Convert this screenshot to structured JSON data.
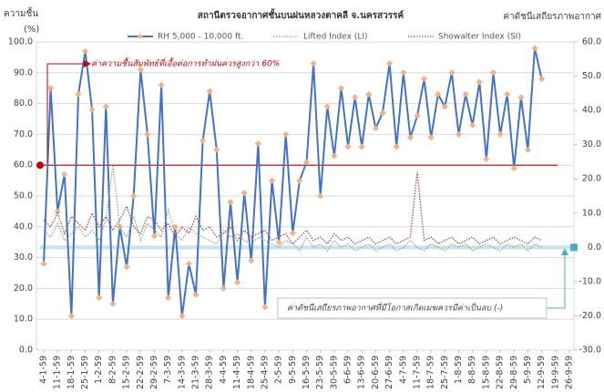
{
  "chart_data": {
    "type": "line",
    "title": "สถานีตรวจอากาศชั้นบนฝนหลวงตาคลี  จ.นครสวรรค์",
    "ylabel": [
      "ความชื้น",
      "(%)"
    ],
    "y2label": "ค่าดัชนีเสถียรภาพอากาศ",
    "annotations": [
      "ค่าความชื้นสัมพัทธ์ที่เอื้อต่อการทำฝนควรสูงกว่า 60%",
      "ค่าดัชนีเสถียรภาพอากาศที่มีโอกาสเกิดเมฆควรมีค่าเป็นลบ (-)"
    ],
    "categories": [
      "4-1-59",
      null,
      "11-1-59",
      null,
      "18-1-59",
      null,
      "25-1-59",
      null,
      "1-2-59",
      null,
      "8-2-59",
      null,
      "15-2-59",
      null,
      "22-2-59",
      null,
      "29-2-59",
      null,
      "7-3-59",
      null,
      "14-3-59",
      null,
      "21-3-59",
      null,
      "28-3-59",
      null,
      "4-4-59",
      null,
      "11-4-59",
      null,
      "18-4-59",
      null,
      "25-4-59",
      null,
      "2-5-59",
      null,
      "9-5-59",
      null,
      "16-5-59",
      null,
      "23-5-59",
      null,
      "30-5-59",
      null,
      "6-6-59",
      null,
      "13-6-59",
      null,
      "20-6-59",
      null,
      "27-6-59",
      null,
      "4-7-59",
      null,
      "11-7-59",
      null,
      "18-7-59",
      null,
      "25-7-59",
      null,
      "1-8-59",
      null,
      "8-8-59",
      null,
      "15-8-59",
      null,
      "22-8-59",
      null,
      "29-8-59",
      null,
      "5-9-59",
      null,
      "12-9-59",
      null,
      "19-9-59",
      null,
      "26-9-59"
    ],
    "series": [
      {
        "name": "RH 5,000 - 10,000 ft.",
        "color": "#4472c4",
        "marker_color": "#f4b183",
        "style": "solid",
        "axis": "y",
        "values": [
          28,
          85,
          45,
          57,
          11,
          83,
          97,
          78,
          17,
          79,
          15,
          40,
          27,
          50,
          91,
          70,
          37,
          86,
          17,
          40,
          11,
          28,
          18,
          68,
          84,
          65,
          20,
          48,
          22,
          51,
          29,
          67,
          14,
          55,
          35,
          70,
          38,
          55,
          61,
          93,
          50,
          79,
          63,
          85,
          66,
          82,
          66,
          83,
          72,
          77,
          93,
          66,
          90,
          69,
          76,
          88,
          69,
          83,
          79,
          90,
          70,
          83,
          73,
          87,
          62,
          90,
          70,
          83,
          59,
          82,
          65,
          98,
          88,
          null,
          null,
          null,
          null
        ]
      },
      {
        "name": "Lifted Index (LI)",
        "color": "#8faa8f",
        "style": "dotted",
        "axis": "y2",
        "values": [
          5,
          3,
          7,
          2,
          4,
          6,
          3,
          5,
          2,
          8,
          24,
          6,
          3,
          9,
          2,
          7,
          5,
          3,
          11,
          4,
          2,
          6,
          4,
          3,
          2,
          1,
          5,
          3,
          4,
          2,
          1,
          3,
          2,
          1,
          0,
          2,
          1,
          -1,
          3,
          0,
          1,
          -1,
          2,
          0,
          1,
          -1,
          0,
          1,
          -1,
          0,
          1,
          -1,
          0,
          2,
          0,
          -1,
          1,
          0,
          -1,
          1,
          0,
          1,
          -1,
          0,
          1,
          0,
          -1,
          1,
          0,
          1,
          -1,
          1,
          0,
          null,
          null,
          null,
          null
        ]
      },
      {
        "name": "Showalter Index (SI)",
        "color": "#a9484a",
        "style": "dotted",
        "axis": "y2",
        "values": [
          8,
          6,
          10,
          4,
          9,
          7,
          5,
          10,
          6,
          9,
          5,
          8,
          12,
          6,
          4,
          9,
          8,
          5,
          7,
          3,
          6,
          4,
          9,
          5,
          6,
          3,
          4,
          6,
          2,
          5,
          3,
          4,
          5,
          2,
          3,
          4,
          1,
          3,
          5,
          2,
          3,
          1,
          4,
          2,
          3,
          1,
          2,
          3,
          1,
          2,
          3,
          1,
          2,
          3,
          22,
          2,
          3,
          1,
          2,
          3,
          1,
          2,
          3,
          1,
          2,
          3,
          1,
          2,
          3,
          2,
          1,
          3,
          2,
          null,
          null,
          null,
          null
        ]
      }
    ],
    "ylim": [
      0,
      100
    ],
    "yticks": [
      {
        "value": 0,
        "label": "0.0"
      },
      {
        "value": 10,
        "label": "10.0"
      },
      {
        "value": 20,
        "label": "20.0"
      },
      {
        "value": 30,
        "label": "30.0"
      },
      {
        "value": 40,
        "label": "40.0"
      },
      {
        "value": 50,
        "label": "50.0"
      },
      {
        "value": 60,
        "label": "60.0"
      },
      {
        "value": 70,
        "label": "70.0"
      },
      {
        "value": 80,
        "label": "80.0"
      },
      {
        "value": 90,
        "label": "90.0"
      },
      {
        "value": 100,
        "label": "100.0"
      }
    ],
    "y2lim": [
      -30,
      60
    ],
    "y2ticks": [
      {
        "value": -30,
        "label": "-30.0"
      },
      {
        "value": -20,
        "label": "-20.0"
      },
      {
        "value": -10,
        "label": "-10.0"
      },
      {
        "value": 0,
        "label": "0.0"
      },
      {
        "value": 10,
        "label": "10.0"
      },
      {
        "value": 20,
        "label": "20.0"
      },
      {
        "value": 30,
        "label": "30.0"
      },
      {
        "value": 40,
        "label": "40.0"
      },
      {
        "value": 50,
        "label": "50.0"
      },
      {
        "value": 60,
        "label": "60.0"
      }
    ],
    "grid": true,
    "reference_line": {
      "value": 60,
      "color": "#c00000"
    },
    "reference_line_y2": {
      "value": 0,
      "color": "#b7dee8"
    }
  }
}
